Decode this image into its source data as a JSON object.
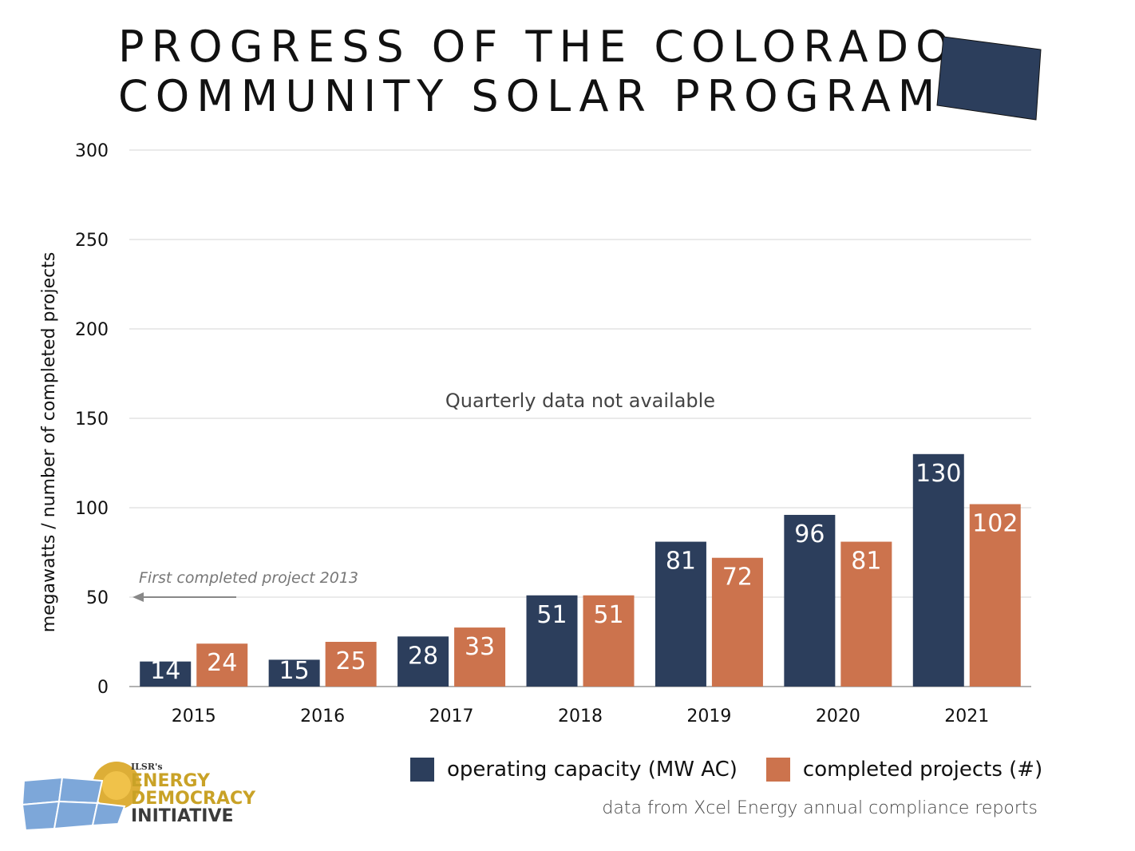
{
  "title": {
    "line1": "PROGRESS OF THE COLORADO",
    "line2": "COMMUNITY SOLAR PROGRAM"
  },
  "colors": {
    "capacity": "#2c3e5c",
    "projects": "#cc734d",
    "state_shape": "#2c3e5c"
  },
  "chart_data": {
    "type": "bar",
    "categories": [
      "2015",
      "2016",
      "2017",
      "2018",
      "2019",
      "2020",
      "2021"
    ],
    "series": [
      {
        "name": "operating capacity (MW AC)",
        "values": [
          14,
          15,
          28,
          51,
          81,
          96,
          130
        ]
      },
      {
        "name": "completed projects (#)",
        "values": [
          24,
          25,
          33,
          51,
          72,
          81,
          102
        ]
      }
    ],
    "ylabel": "megawatts / number of completed projects",
    "ylim": [
      0,
      300
    ],
    "yticks": [
      0,
      50,
      100,
      150,
      200,
      250,
      300
    ],
    "grid": true,
    "annotations": {
      "center_note": "Quarterly data not available",
      "arrow_note": "First completed project 2013"
    },
    "legend_position": "bottom-right"
  },
  "legend": {
    "capacity_label": "operating capacity (MW AC)",
    "projects_label": "completed projects (#)"
  },
  "source_note": "data from Xcel Energy annual compliance reports",
  "logo": {
    "small": "ILSR's",
    "line1": "ENERGY",
    "line2": "DEMOCRACY",
    "line3": "INITIATIVE"
  }
}
